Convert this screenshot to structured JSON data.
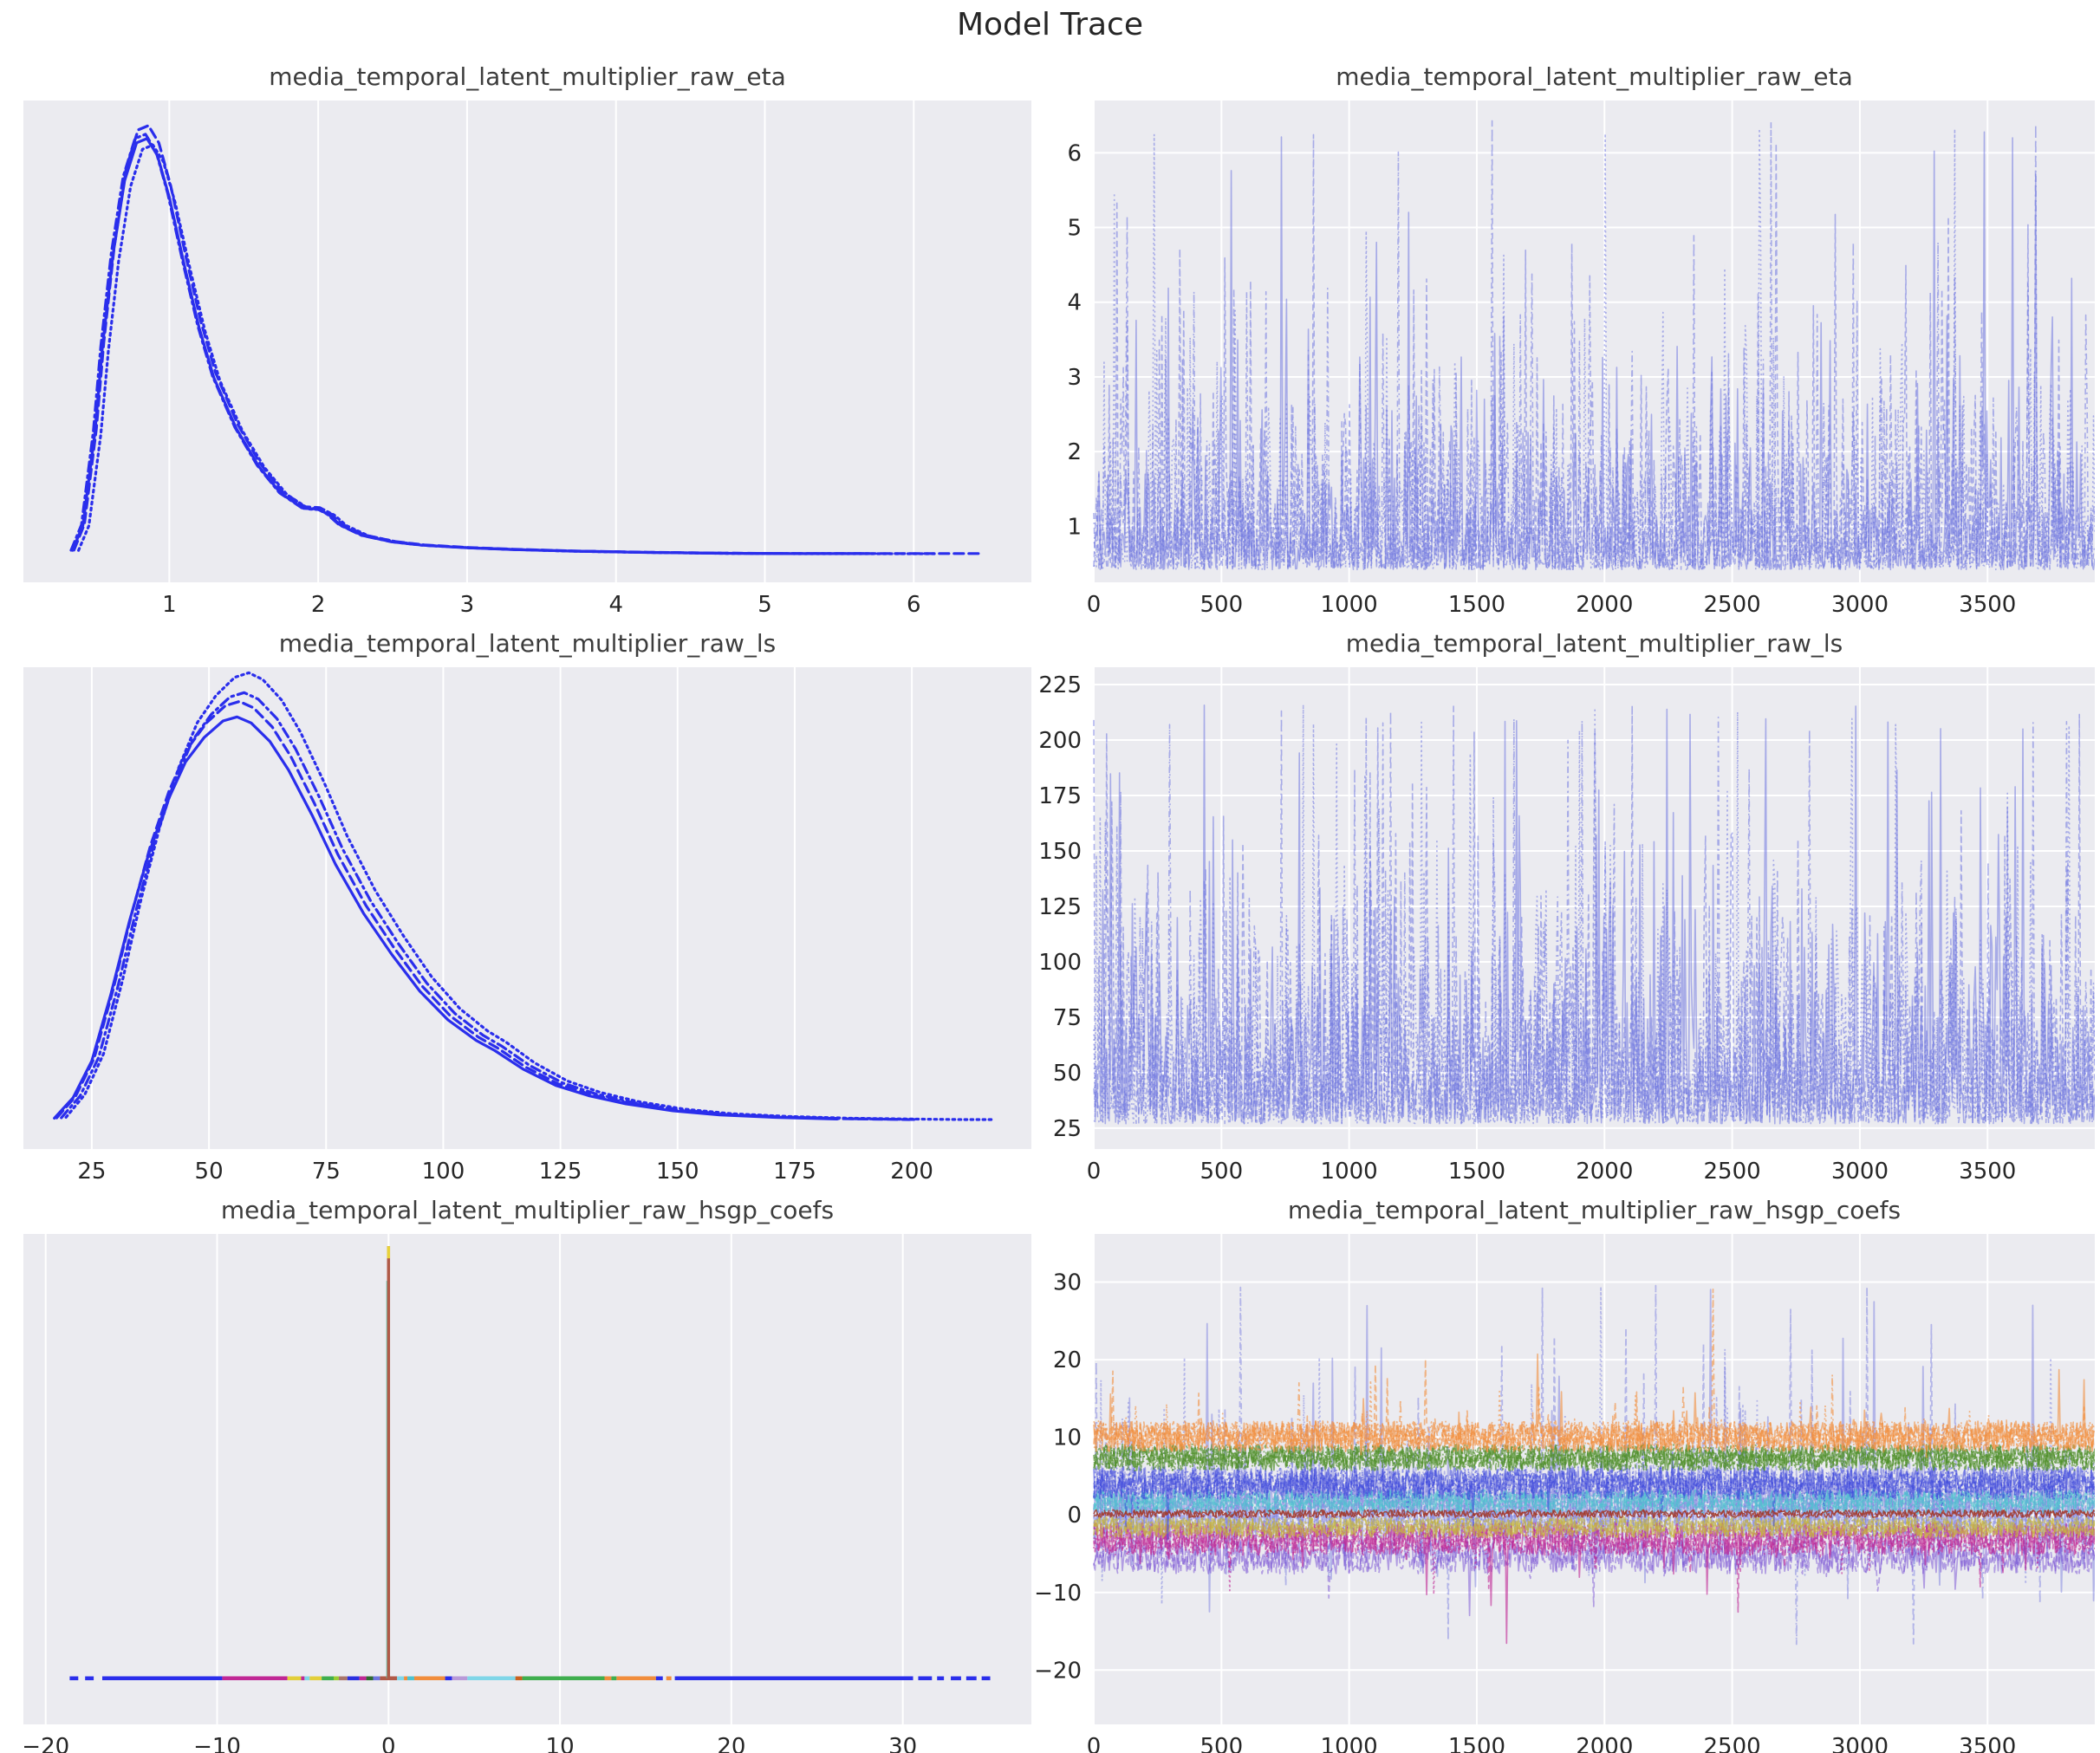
{
  "title": "Model Trace",
  "style": {
    "axes_bg": "#ebebf0",
    "grid_color": "#ffffff",
    "tick_color": "#262626",
    "title_color": "#3c3c3c",
    "kde_blue": "#2a2eec",
    "trace_blue": "#7076e0"
  },
  "chart_data": [
    {
      "id": "sp0",
      "type": "kde",
      "title": "media_temporal_latent_multiplier_raw_eta",
      "xlim": [
        0.02,
        6.79
      ],
      "xticks": [
        1,
        2,
        3,
        4,
        5,
        6
      ],
      "grid": "vertical",
      "base_f": 0.951,
      "peak_f": 0.052,
      "line_width": 3.2,
      "chains": [
        {
          "style": "solid",
          "scale": 0.97,
          "dx": 0.0,
          "xend": 5.9
        },
        {
          "style": "dashed",
          "scale": 1.0,
          "dx": 0.01,
          "xend": 6.45
        },
        {
          "style": "dashdot",
          "scale": 0.98,
          "dx": -0.01,
          "xend": 6.05
        },
        {
          "style": "dotted",
          "scale": 0.955,
          "dx": 0.04,
          "xend": 6.2
        }
      ],
      "points": [
        [
          0.35,
          0.02
        ],
        [
          0.42,
          0.08
        ],
        [
          0.5,
          0.3
        ],
        [
          0.55,
          0.5
        ],
        [
          0.62,
          0.72
        ],
        [
          0.7,
          0.9
        ],
        [
          0.78,
          0.99
        ],
        [
          0.85,
          1.0
        ],
        [
          0.92,
          0.96
        ],
        [
          1.0,
          0.86
        ],
        [
          1.1,
          0.7
        ],
        [
          1.2,
          0.55
        ],
        [
          1.3,
          0.43
        ],
        [
          1.45,
          0.31
        ],
        [
          1.6,
          0.22
        ],
        [
          1.75,
          0.155
        ],
        [
          1.9,
          0.12
        ],
        [
          2.0,
          0.118
        ],
        [
          2.07,
          0.105
        ],
        [
          2.15,
          0.08
        ],
        [
          2.3,
          0.055
        ],
        [
          2.5,
          0.04
        ],
        [
          2.7,
          0.032
        ],
        [
          3.0,
          0.026
        ],
        [
          3.3,
          0.022
        ],
        [
          3.7,
          0.018
        ],
        [
          4.2,
          0.015
        ],
        [
          4.7,
          0.013
        ],
        [
          5.2,
          0.012
        ],
        [
          5.7,
          0.012
        ],
        [
          6.1,
          0.012
        ],
        [
          6.45,
          0.012
        ]
      ]
    },
    {
      "id": "sp1",
      "type": "trace",
      "title": "media_temporal_latent_multiplier_raw_eta",
      "xlim": [
        0,
        3920
      ],
      "xticks": [
        0,
        500,
        1000,
        1500,
        2000,
        2500,
        3000,
        3500
      ],
      "ylim": [
        0.25,
        6.7
      ],
      "yticks": [
        1,
        2,
        3,
        4,
        5,
        6
      ],
      "grid": "both",
      "seed": 11,
      "n": 780,
      "opacity": 0.55,
      "line_width": 1.6,
      "gen": {
        "base": 0.42,
        "tail": 0.55,
        "pow": 1.35,
        "clip": 6.45
      },
      "chains": [
        "solid",
        "dashed",
        "dotted",
        "dashdot"
      ]
    },
    {
      "id": "sp2",
      "type": "kde",
      "title": "media_temporal_latent_multiplier_raw_ls",
      "xlim": [
        10.4,
        225.5
      ],
      "xticks": [
        25,
        50,
        75,
        100,
        125,
        150,
        175,
        200
      ],
      "grid": "vertical",
      "base_f": 0.953,
      "peak_f": 0.039,
      "line_width": 3.2,
      "chains": [
        {
          "style": "solid",
          "scale": 0.93,
          "dx": -1.0,
          "xend": 199
        },
        {
          "style": "dashed",
          "scale": 0.965,
          "dx": -0.5,
          "xend": 205
        },
        {
          "style": "dashdot",
          "scale": 0.985,
          "dx": 0.5,
          "xend": 209
        },
        {
          "style": "dotted",
          "scale": 1.03,
          "dx": 1.5,
          "xend": 216
        }
      ],
      "points": [
        [
          18,
          0.02
        ],
        [
          22,
          0.07
        ],
        [
          26,
          0.16
        ],
        [
          30,
          0.32
        ],
        [
          34,
          0.5
        ],
        [
          38,
          0.66
        ],
        [
          42,
          0.79
        ],
        [
          46,
          0.89
        ],
        [
          50,
          0.95
        ],
        [
          54,
          0.99
        ],
        [
          57,
          1.0
        ],
        [
          60,
          0.985
        ],
        [
          64,
          0.94
        ],
        [
          68,
          0.87
        ],
        [
          73,
          0.76
        ],
        [
          78,
          0.64
        ],
        [
          84,
          0.52
        ],
        [
          90,
          0.42
        ],
        [
          96,
          0.33
        ],
        [
          102,
          0.26
        ],
        [
          108,
          0.21
        ],
        [
          112,
          0.185
        ],
        [
          118,
          0.14
        ],
        [
          125,
          0.1
        ],
        [
          132,
          0.075
        ],
        [
          140,
          0.055
        ],
        [
          150,
          0.038
        ],
        [
          160,
          0.028
        ],
        [
          172,
          0.022
        ],
        [
          185,
          0.018
        ],
        [
          200,
          0.016
        ],
        [
          210,
          0.015
        ],
        [
          216,
          0.015
        ]
      ]
    },
    {
      "id": "sp3",
      "type": "trace",
      "title": "media_temporal_latent_multiplier_raw_ls",
      "xlim": [
        0,
        3920
      ],
      "xticks": [
        0,
        500,
        1000,
        1500,
        2000,
        2500,
        3000,
        3500
      ],
      "ylim": [
        15.6,
        232.8
      ],
      "yticks": [
        25,
        50,
        75,
        100,
        125,
        150,
        175,
        200,
        225
      ],
      "grid": "both",
      "seed": 23,
      "n": 780,
      "opacity": 0.55,
      "line_width": 1.6,
      "gen": {
        "base": 27,
        "tail": 26,
        "pow": 1.25,
        "clip": 216
      },
      "chains": [
        "solid",
        "dashed",
        "dotted",
        "dashdot"
      ]
    },
    {
      "id": "sp4",
      "type": "kde-spike",
      "title": "media_temporal_latent_multiplier_raw_hsgp_coefs",
      "xlim": [
        -21.3,
        37.5
      ],
      "xticks": [
        -20,
        -10,
        0,
        10,
        20,
        30
      ],
      "grid": "vertical",
      "baseline_f": 0.906,
      "spike": {
        "x": 0,
        "top_f": 0.025,
        "main": "#b05a48",
        "edge": "#57c8a8",
        "tip": "#e8d23a"
      },
      "segments": [
        {
          "x0": -18.6,
          "x1": -18.1,
          "c": "#2a2eec"
        },
        {
          "x0": -17.7,
          "x1": -17.2,
          "c": "#2a2eec"
        },
        {
          "x0": -16.7,
          "x1": -9.7,
          "c": "#2a2eec"
        },
        {
          "x0": -9.7,
          "x1": -5.9,
          "c": "#c02795"
        },
        {
          "x0": -5.9,
          "x1": -5.1,
          "c": "#e3cf3a"
        },
        {
          "x0": -5.1,
          "x1": -4.9,
          "c": "#c02795"
        },
        {
          "x0": -4.9,
          "x1": -4.6,
          "c": "#7fd6e8"
        },
        {
          "x0": -4.6,
          "x1": -3.9,
          "c": "#e3cf3a"
        },
        {
          "x0": -3.9,
          "x1": -3.2,
          "c": "#3fae4e"
        },
        {
          "x0": -3.2,
          "x1": -2.9,
          "c": "#9acd32"
        },
        {
          "x0": -2.9,
          "x1": -2.4,
          "c": "#a9756a"
        },
        {
          "x0": -2.4,
          "x1": -1.7,
          "c": "#2a30e0"
        },
        {
          "x0": -1.7,
          "x1": -1.3,
          "c": "#c02795"
        },
        {
          "x0": -1.3,
          "x1": -0.9,
          "c": "#2f6b2f"
        },
        {
          "x0": -0.9,
          "x1": -0.5,
          "c": "#7076e0"
        },
        {
          "x0": -0.5,
          "x1": 0.5,
          "c": "#b05a48"
        },
        {
          "x0": 0.5,
          "x1": 0.9,
          "c": "#7fd6e8"
        },
        {
          "x0": 0.9,
          "x1": 1.1,
          "c": "#f18d3c"
        },
        {
          "x0": 1.1,
          "x1": 1.5,
          "c": "#4cc3cf"
        },
        {
          "x0": 1.5,
          "x1": 3.3,
          "c": "#f18d3c"
        },
        {
          "x0": 3.3,
          "x1": 3.7,
          "c": "#2a2eec"
        },
        {
          "x0": 3.7,
          "x1": 4.6,
          "c": "#b89ad8"
        },
        {
          "x0": 4.6,
          "x1": 7.4,
          "c": "#7fd6e8"
        },
        {
          "x0": 7.4,
          "x1": 7.8,
          "c": "#c9611f"
        },
        {
          "x0": 7.8,
          "x1": 12.6,
          "c": "#3fae4e"
        },
        {
          "x0": 12.6,
          "x1": 13.0,
          "c": "#f18d3c"
        },
        {
          "x0": 13.0,
          "x1": 13.3,
          "c": "#3fae4e"
        },
        {
          "x0": 13.3,
          "x1": 15.6,
          "c": "#f18d3c"
        },
        {
          "x0": 15.6,
          "x1": 16.0,
          "c": "#2a2eec"
        },
        {
          "x0": 16.2,
          "x1": 16.5,
          "c": "#f18d3c"
        },
        {
          "x0": 16.7,
          "x1": 30.6,
          "c": "#2a2eec"
        },
        {
          "x0": 30.9,
          "x1": 31.7,
          "c": "#2a2eec"
        },
        {
          "x0": 32.0,
          "x1": 32.4,
          "c": "#2a2eec"
        },
        {
          "x0": 32.8,
          "x1": 33.4,
          "c": "#2a2eec"
        },
        {
          "x0": 33.7,
          "x1": 34.3,
          "c": "#2a2eec"
        },
        {
          "x0": 34.6,
          "x1": 35.1,
          "c": "#2a2eec"
        }
      ]
    },
    {
      "id": "sp5",
      "type": "trace-bands",
      "title": "media_temporal_latent_multiplier_raw_hsgp_coefs",
      "xlim": [
        0,
        3920
      ],
      "xticks": [
        0,
        500,
        1000,
        1500,
        2000,
        2500,
        3000,
        3500
      ],
      "ylim": [
        -27.0,
        36.2
      ],
      "yticks": [
        -20,
        -10,
        0,
        10,
        20,
        30
      ],
      "grid": "both",
      "seed": 37,
      "n": 840,
      "bands": [
        {
          "c": "#7b80e0",
          "center": 1.2,
          "spread": 5.2,
          "sp": 0.1,
          "upf": 0.62,
          "tu": 8,
          "td": 5.5,
          "max": 29.6,
          "min": -17,
          "passes": 4,
          "op": 0.5,
          "wd": 1.8
        },
        {
          "c": "#6a3fd0",
          "center": -5.4,
          "spread": 2.2,
          "sp": 0.03,
          "upf": 0.2,
          "tu": 0.5,
          "td": 2,
          "passes": 2,
          "op": 0.45,
          "wd": 1.7
        },
        {
          "c": "#c02795",
          "center": -3.1,
          "spread": 2.1,
          "sp": 0.05,
          "upf": 0.15,
          "tu": 0.5,
          "td": 2.2,
          "passes": 3,
          "op": 0.6,
          "wd": 1.7
        },
        {
          "c": "#c7b63a",
          "center": -1.6,
          "spread": 1.35,
          "sp": 0,
          "passes": 3,
          "op": 0.6,
          "wd": 1.7
        },
        {
          "c": "#4cc3cf",
          "center": 1.7,
          "spread": 1.6,
          "sp": 0,
          "passes": 3,
          "op": 0.6,
          "wd": 1.7
        },
        {
          "c": "#3a45dd",
          "center": 4.1,
          "spread": 2.1,
          "sp": 0.02,
          "upf": 0.5,
          "tu": 1.5,
          "td": 1.5,
          "passes": 3,
          "op": 0.55,
          "wd": 1.7
        },
        {
          "c": "#4f8f28",
          "center": 7.4,
          "spread": 1.7,
          "sp": 0,
          "passes": 4,
          "op": 0.65,
          "wd": 1.7
        },
        {
          "c": "#f18d3c",
          "center": 10.1,
          "spread": 2.0,
          "sp": 0.04,
          "upf": 0.9,
          "tu": 2.8,
          "td": 0.5,
          "passes": 4,
          "op": 0.6,
          "wd": 1.7
        },
        {
          "c": "#a23a2b",
          "center": 0.15,
          "spread": 0.5,
          "sp": 0,
          "passes": 2,
          "op": 0.85,
          "wd": 1.5
        }
      ]
    }
  ]
}
